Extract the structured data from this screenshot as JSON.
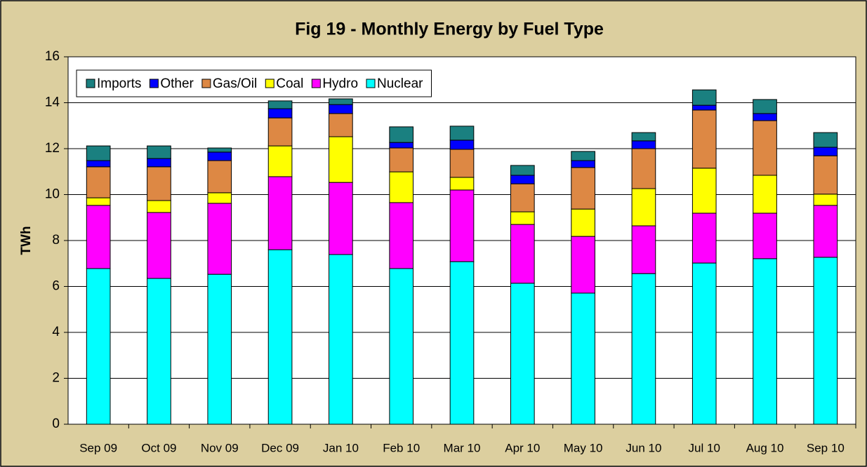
{
  "chart_data": {
    "type": "stacked_bar",
    "title": "Fig  19 - Monthly Energy by Fuel Type",
    "y_label": "TWh",
    "categories": [
      "Sep 09",
      "Oct 09",
      "Nov 09",
      "Dec 09",
      "Jan 10",
      "Feb 10",
      "Mar 10",
      "Apr 10",
      "May 10",
      "Jun 10",
      "Jul 10",
      "Aug 10",
      "Sep 10"
    ],
    "series": [
      {
        "name": "Nuclear",
        "color": "#00ffff",
        "values": [
          6.78,
          6.35,
          6.53,
          7.6,
          7.39,
          6.78,
          7.08,
          6.14,
          5.71,
          6.56,
          7.02,
          7.21,
          7.27
        ]
      },
      {
        "name": "Hydro",
        "color": "#ff00ff",
        "values": [
          2.75,
          2.87,
          3.09,
          3.18,
          3.14,
          2.87,
          3.12,
          2.56,
          2.47,
          2.08,
          2.17,
          1.98,
          2.26
        ]
      },
      {
        "name": "Coal",
        "color": "#ffff00",
        "values": [
          0.33,
          0.52,
          0.46,
          1.34,
          1.99,
          1.34,
          0.55,
          0.55,
          1.19,
          1.62,
          1.96,
          1.65,
          0.49
        ]
      },
      {
        "name": "Gas/Oil",
        "color": "#dd8844",
        "values": [
          1.35,
          1.47,
          1.4,
          1.22,
          1.01,
          1.04,
          1.22,
          1.22,
          1.81,
          1.74,
          2.53,
          2.38,
          1.67
        ]
      },
      {
        "name": "Other",
        "color": "#0000ff",
        "values": [
          0.27,
          0.36,
          0.37,
          0.4,
          0.39,
          0.24,
          0.4,
          0.37,
          0.3,
          0.34,
          0.21,
          0.31,
          0.37
        ]
      },
      {
        "name": "Imports",
        "color": "#1a8080",
        "values": [
          0.64,
          0.55,
          0.18,
          0.34,
          0.25,
          0.68,
          0.61,
          0.43,
          0.4,
          0.36,
          0.67,
          0.61,
          0.64
        ]
      }
    ],
    "ylim": [
      0,
      16
    ],
    "yticks": [
      0,
      2,
      4,
      6,
      8,
      10,
      12,
      14,
      16
    ],
    "grid": true,
    "legend": "top-left"
  }
}
